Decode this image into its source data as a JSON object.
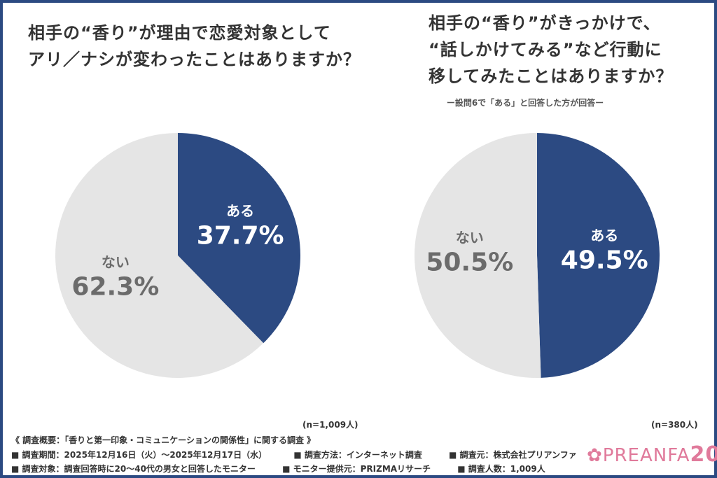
{
  "chart_data": [
    {
      "type": "pie",
      "title": "相手の“香り”が理由で恋愛対象として\nアリ／ナシが変わったことはありますか？",
      "slices": [
        {
          "label": "ある",
          "value": 37.7,
          "display": "37.7%",
          "color": "#2c4a82"
        },
        {
          "label": "ない",
          "value": 62.3,
          "display": "62.3%",
          "color": "#e5e5e5"
        }
      ],
      "n": "(n=1,009人)"
    },
    {
      "type": "pie",
      "title": "相手の“香り”がきっかけで、\n“話しかけてみる”など行動に\n移してみたことはありますか？",
      "subtitle": "ー設問6で「ある」と回答した方が回答ー",
      "slices": [
        {
          "label": "ある",
          "value": 49.5,
          "display": "49.5%",
          "color": "#2c4a82"
        },
        {
          "label": "ない",
          "value": 50.5,
          "display": "50.5%",
          "color": "#e5e5e5"
        }
      ],
      "n": "(n=380人)"
    }
  ],
  "footer": {
    "summary": "《 調査概要：「香りと第一印象・コミュニケーションの関係性」に関する調査 》",
    "line1": [
      "■ 調査期間：2025年12月16日（火）～2025年12月17日（水）",
      "■ 調査方法：インターネット調査",
      "■ 調査元：株式会社プリアンファ"
    ],
    "line2": [
      "■ 調査対象：調査回答時に20～40代の男女と回答したモニター",
      "■ モニター提供元：PRIZMAリサーチ",
      "■ 調査人数：1,009人"
    ]
  },
  "logo": "PREANFA 20"
}
